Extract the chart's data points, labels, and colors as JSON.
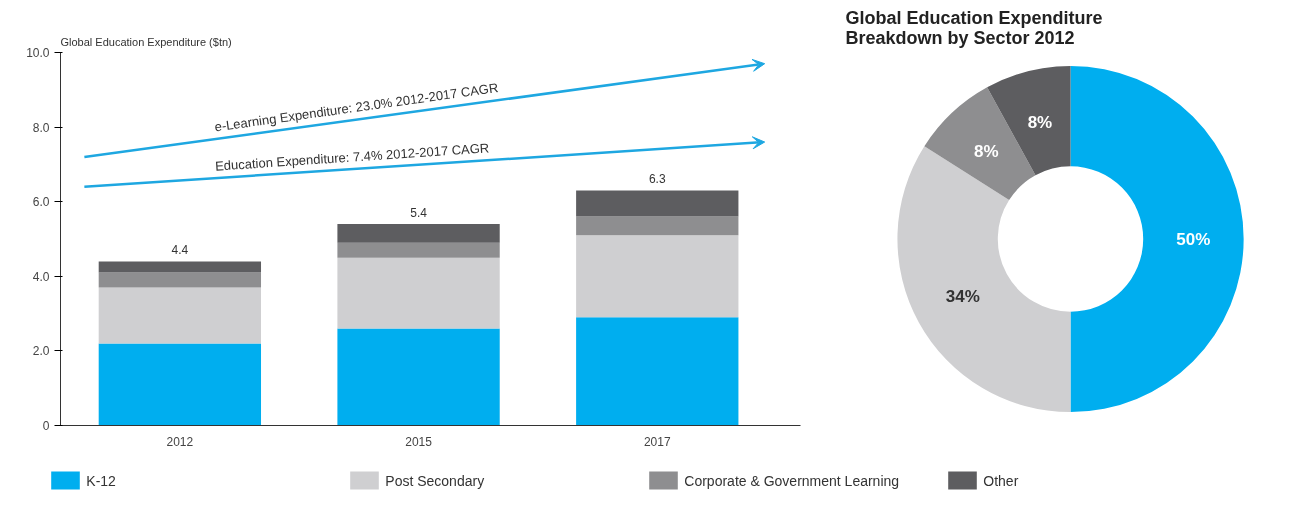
{
  "chart_data": [
    {
      "type": "bar",
      "ylabel": "Global Education Expenditure ($tn)",
      "categories": [
        "2012",
        "2015",
        "2017"
      ],
      "stacked": true,
      "series": [
        {
          "color": "#00aeef",
          "values": [
            2.2,
            2.6,
            2.9
          ]
        },
        {
          "color": "#cfcfd1",
          "values": [
            1.5,
            1.9,
            2.2
          ]
        },
        {
          "color": "#8e8e90",
          "values": [
            0.4,
            0.4,
            0.5
          ]
        },
        {
          "color": "#5d5d60",
          "values": [
            0.3,
            0.5,
            0.7
          ]
        }
      ],
      "totals": [
        "4.4",
        "5.4",
        "6.3"
      ],
      "ylim": [
        0,
        10
      ],
      "yticks": [
        {
          "value": 0,
          "label": "0"
        },
        {
          "value": 2,
          "label": "2.0"
        },
        {
          "value": 4,
          "label": "4.0"
        },
        {
          "value": 6,
          "label": "6.0"
        },
        {
          "value": 8,
          "label": "8.0"
        },
        {
          "value": 10,
          "label": "10.0"
        }
      ],
      "annotations": [
        "e-Learning Expenditure: 23.0% 2012-2017 CAGR",
        "Education Expenditure: 7.4% 2012-2017 CAGR"
      ]
    },
    {
      "type": "donut",
      "title": "Global Education Expenditure Breakdown by Sector 2012",
      "categories": [
        "K-12",
        "Post Secondary",
        "Corporate & Government Learning",
        "Other"
      ],
      "values": [
        50,
        34,
        8,
        8
      ],
      "value_labels": [
        "50%",
        "34%",
        "8%",
        "8%"
      ],
      "colors": [
        "#00aeef",
        "#cfcfd1",
        "#8e8e90",
        "#5d5d60"
      ],
      "legend": "bottom"
    }
  ]
}
